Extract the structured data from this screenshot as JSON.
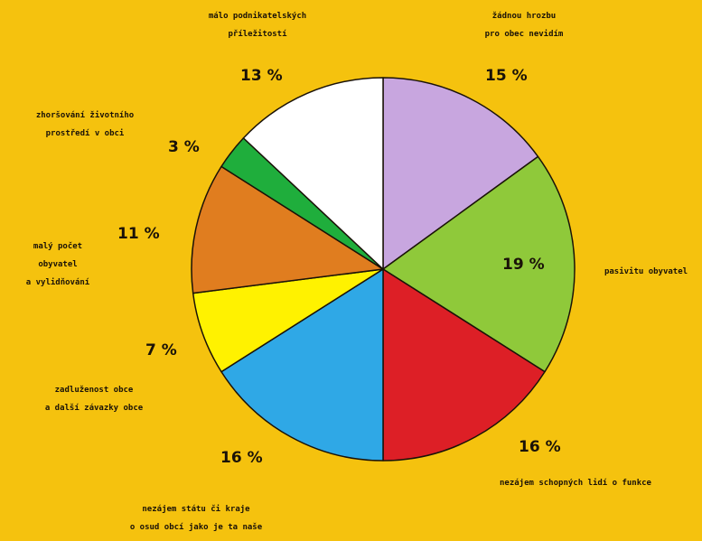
{
  "chart_data": {
    "type": "pie",
    "slices": [
      {
        "label": [
          "žádnou hrozbu",
          "pro obec nevidím"
        ],
        "value": 15,
        "value_label": "15 %",
        "color": "#c8a6df"
      },
      {
        "label": [
          "pasivitu obyvatel"
        ],
        "value": 19,
        "value_label": "19 %",
        "color": "#8fc93a"
      },
      {
        "label": [
          "nezájem schopných lidí o funkce"
        ],
        "value": 16,
        "value_label": "16 %",
        "color": "#dd1f26"
      },
      {
        "label": [
          "nezájem státu či kraje",
          "o osud obcí jako je ta naše"
        ],
        "value": 16,
        "value_label": "16 %",
        "color": "#2fa8e6"
      },
      {
        "label": [
          "zadluženost obce",
          "a další závazky obce"
        ],
        "value": 7,
        "value_label": "7 %",
        "color": "#fff200"
      },
      {
        "label": [
          "malý počet",
          "obyvatel",
          "a vylidňování"
        ],
        "value": 11,
        "value_label": "11 %",
        "color": "#e07d1f"
      },
      {
        "label": [
          "zhoršování životního",
          "prostředí v obci"
        ],
        "value": 3,
        "value_label": "3 %",
        "color": "#1fae3c"
      },
      {
        "label": [
          "málo podnikatelských",
          "příležitostí"
        ],
        "value": 13,
        "value_label": "13 %",
        "color": "#ffffff"
      }
    ]
  }
}
